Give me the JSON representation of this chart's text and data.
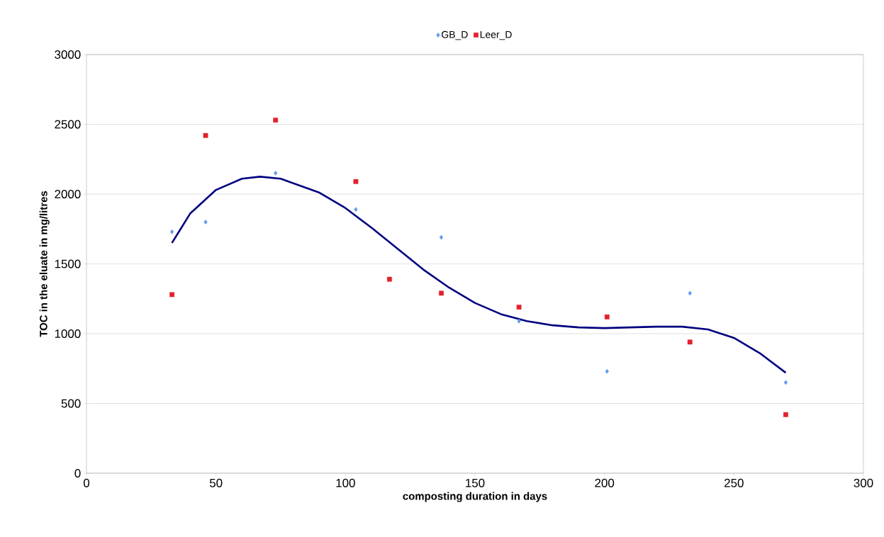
{
  "chart_data": {
    "type": "scatter",
    "xlabel": "composting duration in days",
    "ylabel": "TOC in the eluate in mg/litres",
    "xlim": [
      0,
      300
    ],
    "xticks": [
      0,
      50,
      100,
      150,
      200,
      250,
      300
    ],
    "ylim": [
      0,
      3000
    ],
    "yticks": [
      0,
      500,
      1000,
      1500,
      2000,
      2500,
      3000
    ],
    "grid": "y",
    "legend": "top",
    "series": [
      {
        "name": "GB_D",
        "color": "#5b9bef",
        "marker": "diamond",
        "x": [
          33,
          46,
          73,
          104,
          137,
          167,
          201,
          233,
          270
        ],
        "values": [
          1730,
          1800,
          2150,
          1890,
          1690,
          1090,
          730,
          1290,
          650
        ]
      },
      {
        "name": "Leer_D",
        "color": "#e3202c",
        "marker": "square",
        "x": [
          33,
          46,
          73,
          104,
          117,
          137,
          167,
          201,
          233,
          270
        ],
        "values": [
          1280,
          2420,
          2530,
          2090,
          1390,
          1290,
          1190,
          1120,
          940,
          420
        ]
      },
      {
        "type": "line",
        "color": "#000080",
        "marker": "none",
        "x": [
          33,
          40,
          50,
          60,
          67,
          75,
          90,
          100,
          110,
          120,
          130,
          140,
          150,
          160,
          170,
          180,
          190,
          200,
          210,
          220,
          230,
          240,
          250,
          260,
          270
        ],
        "values": [
          1650,
          1860,
          2030,
          2110,
          2125,
          2110,
          2010,
          1900,
          1760,
          1610,
          1460,
          1330,
          1220,
          1140,
          1090,
          1060,
          1045,
          1040,
          1045,
          1050,
          1050,
          1030,
          970,
          860,
          720
        ]
      }
    ]
  }
}
